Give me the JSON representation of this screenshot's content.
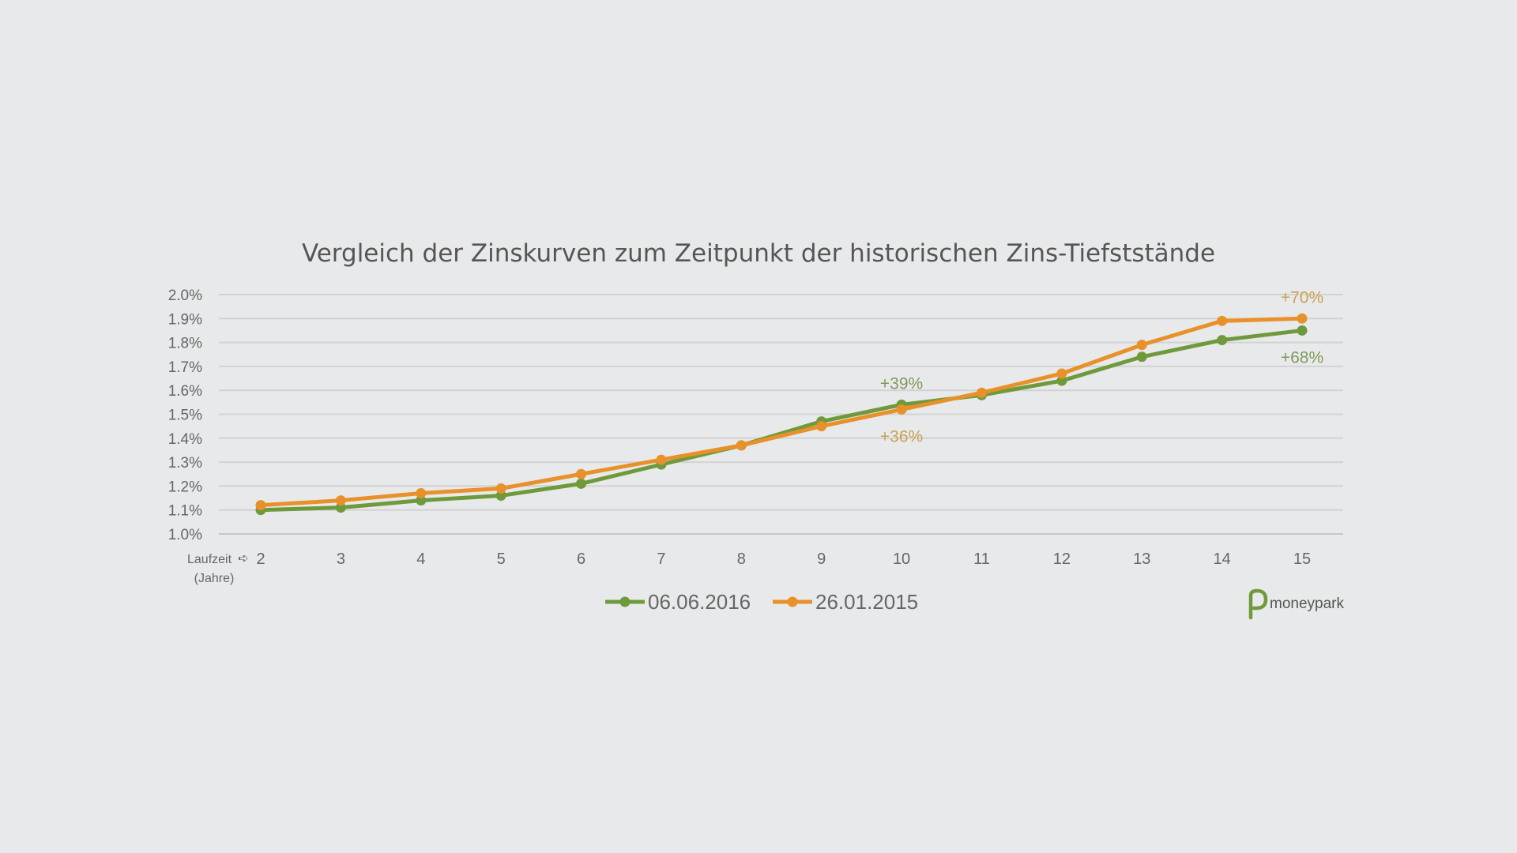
{
  "chart_data": {
    "type": "line",
    "title": "Vergleich der Zinskurven zum Zeitpunkt der historischen Zins-Tiefststände",
    "xlabel": "Laufzeit",
    "xlabel_unit": "(Jahre)",
    "ylabel": "",
    "x": [
      "2",
      "3",
      "4",
      "5",
      "6",
      "7",
      "8",
      "9",
      "10",
      "11",
      "12",
      "13",
      "14",
      "15"
    ],
    "ylim": [
      1.0,
      2.0
    ],
    "y_ticks": [
      "1.0%",
      "1.1%",
      "1.2%",
      "1.3%",
      "1.4%",
      "1.5%",
      "1.6%",
      "1.7%",
      "1.8%",
      "1.9%",
      "2.0%"
    ],
    "grid": true,
    "legend_position": "bottom",
    "series": [
      {
        "name": "06.06.2016",
        "color": "#6f9a3c",
        "values": [
          1.1,
          1.11,
          1.14,
          1.16,
          1.21,
          1.29,
          1.37,
          1.47,
          1.54,
          1.58,
          1.64,
          1.74,
          1.81,
          1.85
        ]
      },
      {
        "name": "26.01.2015",
        "color": "#e8912b",
        "values": [
          1.12,
          1.14,
          1.17,
          1.19,
          1.25,
          1.31,
          1.37,
          1.45,
          1.52,
          1.59,
          1.67,
          1.79,
          1.89,
          1.9
        ]
      }
    ],
    "annotations": [
      {
        "text": "+39%",
        "series": 0,
        "x": "10",
        "placement": "above",
        "color": "#7f9a5c"
      },
      {
        "text": "+36%",
        "series": 1,
        "x": "10",
        "placement": "below",
        "color": "#c9a24f"
      },
      {
        "text": "+70%",
        "series": 1,
        "x": "15",
        "placement": "above",
        "color": "#c9a24f"
      },
      {
        "text": "+68%",
        "series": 0,
        "x": "15",
        "placement": "below",
        "color": "#7f9a5c"
      }
    ]
  },
  "brand": {
    "name": "moneypark",
    "color": "#6f9a3c",
    "icon": "moneypark-logo-icon"
  }
}
